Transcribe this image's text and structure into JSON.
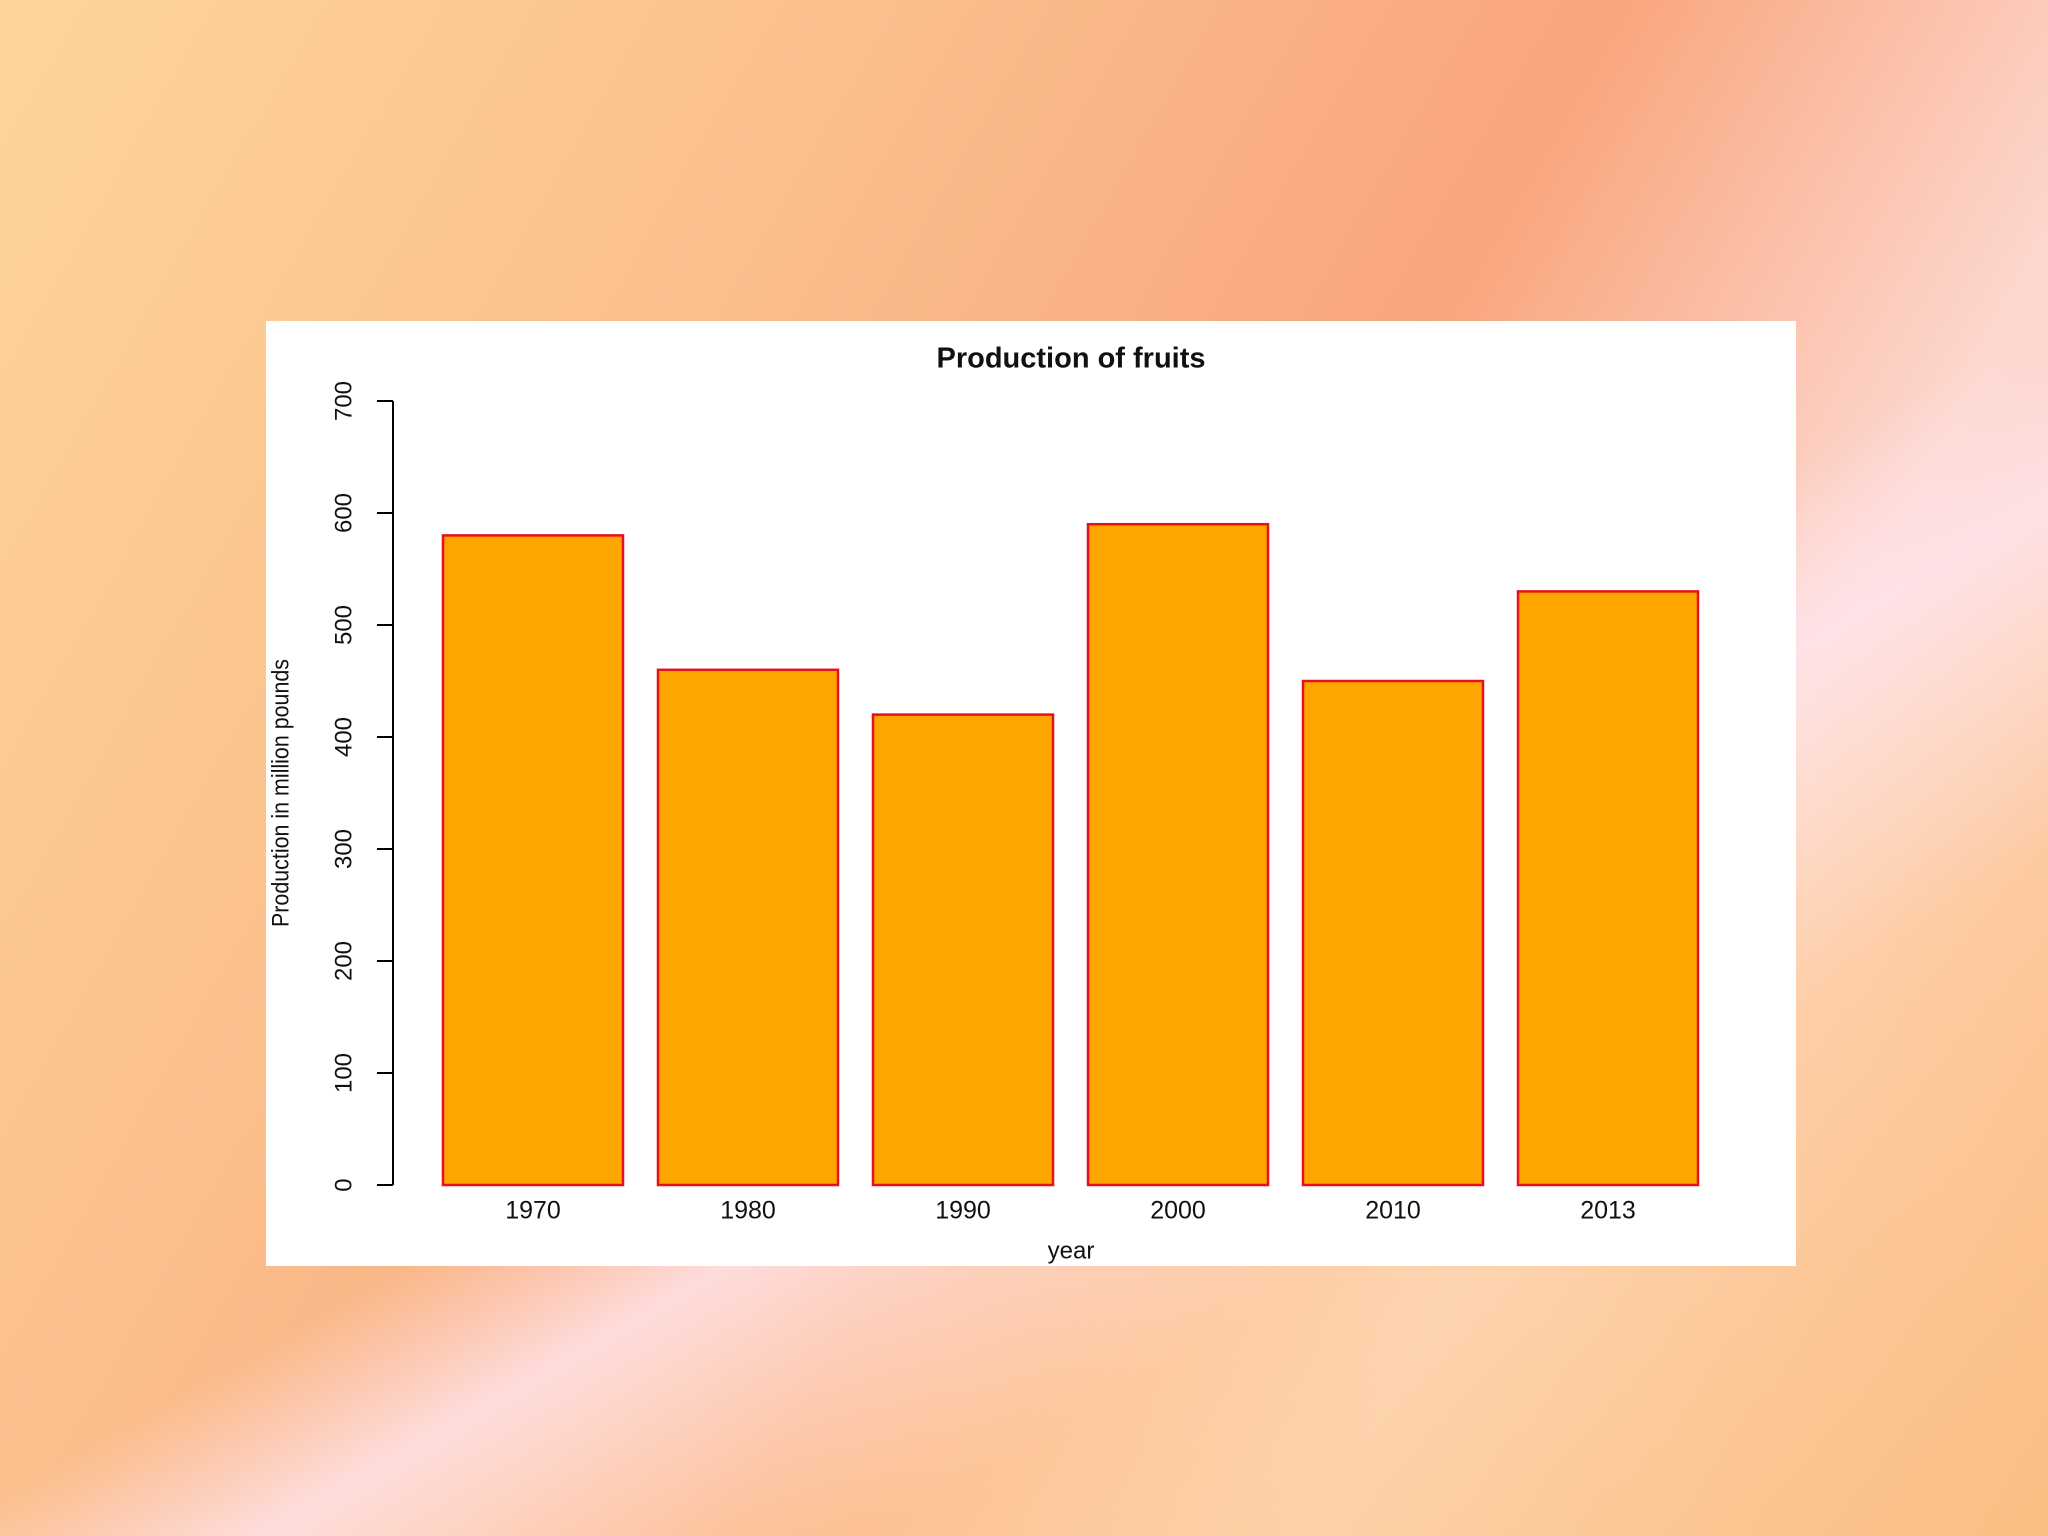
{
  "chart_data": {
    "type": "bar",
    "title": "Production of fruits",
    "x_label": "year",
    "y_label": "Production in million pounds",
    "categories": [
      "1970",
      "1980",
      "1990",
      "2000",
      "2010",
      "2013"
    ],
    "values": [
      580,
      460,
      420,
      590,
      450,
      530
    ],
    "color": "#ffa500",
    "edge_color": "#e8101a",
    "ylim": [
      0,
      700
    ],
    "yticks": [
      0,
      100,
      200,
      300,
      400,
      500,
      600,
      700
    ],
    "grid": false
  }
}
